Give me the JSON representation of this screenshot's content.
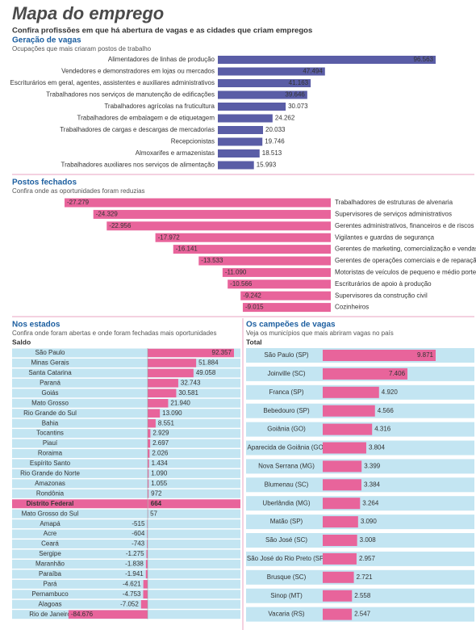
{
  "header": {
    "title": "Mapa do emprego",
    "subtitle": "Confira profissões em que há abertura de vagas e as cidades que criam empregos"
  },
  "chart_data": [
    {
      "type": "bar",
      "orientation": "horizontal",
      "title": "Geração de vagas",
      "subtitle": "Ocupações que mais criaram postos de trabalho",
      "color": "#5a5da6",
      "categories": [
        "Alimentadores de linhas de produção",
        "Vendedores e demonstradores em lojas ou mercados",
        "Escriturários em geral, agentes, assistentes e auxiliares administrativos",
        "Trabalhadores nos serviços de manutenção de edificações",
        "Trabalhadores agrícolas na fruticultura",
        "Trabalhadores de embalagem e de etiquetagem",
        "Trabalhadores de cargas e descargas de mercadorias",
        "Recepcionistas",
        "Almoxarifes e armazenistas",
        "Trabalhadores auxiliares nos serviços de alimentação"
      ],
      "values": [
        96563,
        47494,
        41163,
        39646,
        30073,
        24262,
        20033,
        19746,
        18513,
        15993
      ],
      "value_labels": [
        "96.563",
        "47.494",
        "41.163",
        "39.646",
        "30.073",
        "24.262",
        "20.033",
        "19.746",
        "18.513",
        "15.993"
      ]
    },
    {
      "type": "bar",
      "orientation": "horizontal",
      "title": "Postos fechados",
      "subtitle": "Confira onde as oportunidades foram reduzias",
      "color": "#e8649b",
      "categories": [
        "Trabalhadores de estruturas de alvenaria",
        "Supervisores de serviços administrativos",
        "Gerentes administrativos, financeiros e de riscos",
        "Vigilantes e guardas de segurança",
        "Gerentes de marketing, comercialização e vendas",
        "Gerentes de operações comerciais e de reparação",
        "Motoristas de veículos de pequeno e médio porte",
        "Escriturários de apoio à produção",
        "Supervisores da construção civil",
        "Cozinheiros"
      ],
      "values": [
        -27279,
        -24329,
        -22956,
        -17972,
        -16141,
        -13533,
        -11090,
        -10566,
        -9242,
        -9015
      ],
      "value_labels": [
        "-27.279",
        "-24.329",
        "-22.956",
        "-17.972",
        "-16.141",
        "-13.533",
        "-11.090",
        "-10.566",
        "-9.242",
        "-9.015"
      ]
    },
    {
      "type": "bar",
      "orientation": "horizontal",
      "title": "Nos estados",
      "subtitle": "Confira onde foram abertas e onde foram fechadas mais oportunidades",
      "value_axis_label": "Saldo",
      "color": "#e8649b",
      "highlight": "Distrito Federal",
      "categories": [
        "São Paulo",
        "Minas Gerais",
        "Santa Catarina",
        "Paraná",
        "Goiás",
        "Mato Grosso",
        "Rio Grande do Sul",
        "Bahia",
        "Tocantins",
        "Piauí",
        "Roraima",
        "Espírito Santo",
        "Rio Grande do Norte",
        "Amazonas",
        "Rondônia",
        "Distrito Federal",
        "Mato Grosso do Sul",
        "Amapá",
        "Acre",
        "Ceará",
        "Sergipe",
        "Maranhão",
        "Paraíba",
        "Pará",
        "Pernambuco",
        "Alagoas",
        "Rio de Janeiro"
      ],
      "values": [
        92357,
        51884,
        49058,
        32743,
        30581,
        21940,
        13090,
        8551,
        2929,
        2697,
        2026,
        1434,
        1090,
        1055,
        972,
        664,
        57,
        -515,
        -604,
        -743,
        -1275,
        -1838,
        -1941,
        -4621,
        -4753,
        -7052,
        -84676
      ],
      "value_labels": [
        "92.357",
        "51.884",
        "49.058",
        "32.743",
        "30.581",
        "21.940",
        "13.090",
        "8.551",
        "2.929",
        "2.697",
        "2.026",
        "1.434",
        "1.090",
        "1.055",
        "972",
        "664",
        "57",
        "-515",
        "-604",
        "-743",
        "-1.275",
        "-1.838",
        "-1.941",
        "-4.621",
        "-4.753",
        "-7.052",
        "-84.676"
      ]
    },
    {
      "type": "bar",
      "orientation": "horizontal",
      "title": "Os campeões de vagas",
      "subtitle": "Veja os municípios que mais abriram vagas no país",
      "value_axis_label": "Total",
      "color": "#e8649b",
      "categories": [
        "São Paulo (SP)",
        "Joinville (SC)",
        "Franca (SP)",
        "Bebedouro (SP)",
        "Goiânia (GO)",
        "Aparecida de Goiânia (GO)",
        "Nova Serrana (MG)",
        "Blumenau (SC)",
        "Uberlândia (MG)",
        "Matão (SP)",
        "São José (SC)",
        "São José do Rio Preto (SP)",
        "Brusque (SC)",
        "Sinop (MT)",
        "Vacaria (RS)"
      ],
      "values": [
        9871,
        7406,
        4920,
        4566,
        4316,
        3804,
        3399,
        3384,
        3264,
        3090,
        3008,
        2957,
        2721,
        2558,
        2547
      ],
      "value_labels": [
        "9.871",
        "7.406",
        "4.920",
        "4.566",
        "4.316",
        "3.804",
        "3.399",
        "3.384",
        "3.264",
        "3.090",
        "3.008",
        "2.957",
        "2.721",
        "2.558",
        "2.547"
      ]
    }
  ]
}
